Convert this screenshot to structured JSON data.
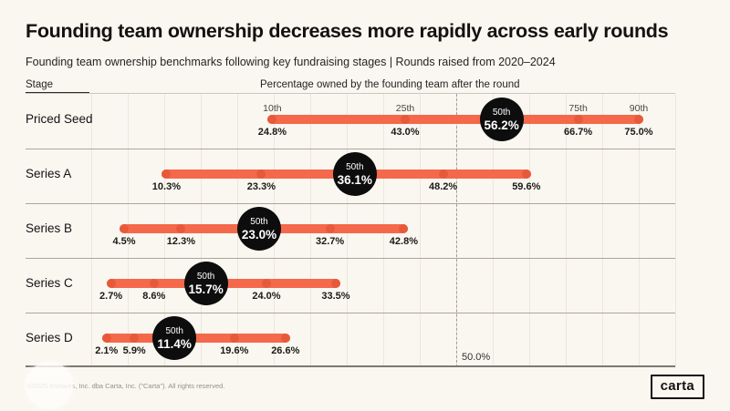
{
  "header": {
    "title": "Founding team ownership decreases more rapidly across early rounds",
    "subtitle": "Founding team ownership benchmarks following key fundraising stages | Rounds raised from 2020–2024"
  },
  "columns": {
    "stage": "Stage",
    "value": "Percentage owned by the founding team after the round"
  },
  "chart_data": {
    "type": "bar",
    "variant": "horizontal-percentile-range",
    "title": "Founding team ownership decreases more rapidly across early rounds",
    "percentiles": [
      "10th",
      "25th",
      "50th",
      "75th",
      "90th"
    ],
    "median_percentile_label": "50th",
    "categories": [
      "Priced Seed",
      "Series A",
      "Series B",
      "Series C",
      "Series D"
    ],
    "series": [
      {
        "name": "Priced Seed",
        "values": [
          24.8,
          43.0,
          56.2,
          66.7,
          75.0
        ]
      },
      {
        "name": "Series A",
        "values": [
          10.3,
          23.3,
          36.1,
          48.2,
          59.6
        ]
      },
      {
        "name": "Series B",
        "values": [
          4.5,
          12.3,
          23.0,
          32.7,
          42.8
        ]
      },
      {
        "name": "Series C",
        "values": [
          2.7,
          8.6,
          15.7,
          24.0,
          33.5
        ]
      },
      {
        "name": "Series D",
        "values": [
          2.1,
          5.9,
          11.4,
          19.6,
          26.6
        ]
      }
    ],
    "unit": "%",
    "xlim": [
      0,
      80
    ],
    "gridline_step_pct": 5,
    "grid": "faint vertical lines",
    "legend_position": "none",
    "reference_line": {
      "value": 50.0,
      "label": "50.0%"
    },
    "colors": {
      "bar": "#F4694B",
      "dot": "#E85939",
      "median_badge": "#0D0D0D",
      "median_badge_text": "#FFFFFF",
      "background": "#FAF7F1"
    }
  },
  "footer": {
    "copyright": "©2025 eShares, Inc. dba Carta, Inc. (\"Carta\"). All rights reserved.",
    "logo_text": "carta"
  }
}
